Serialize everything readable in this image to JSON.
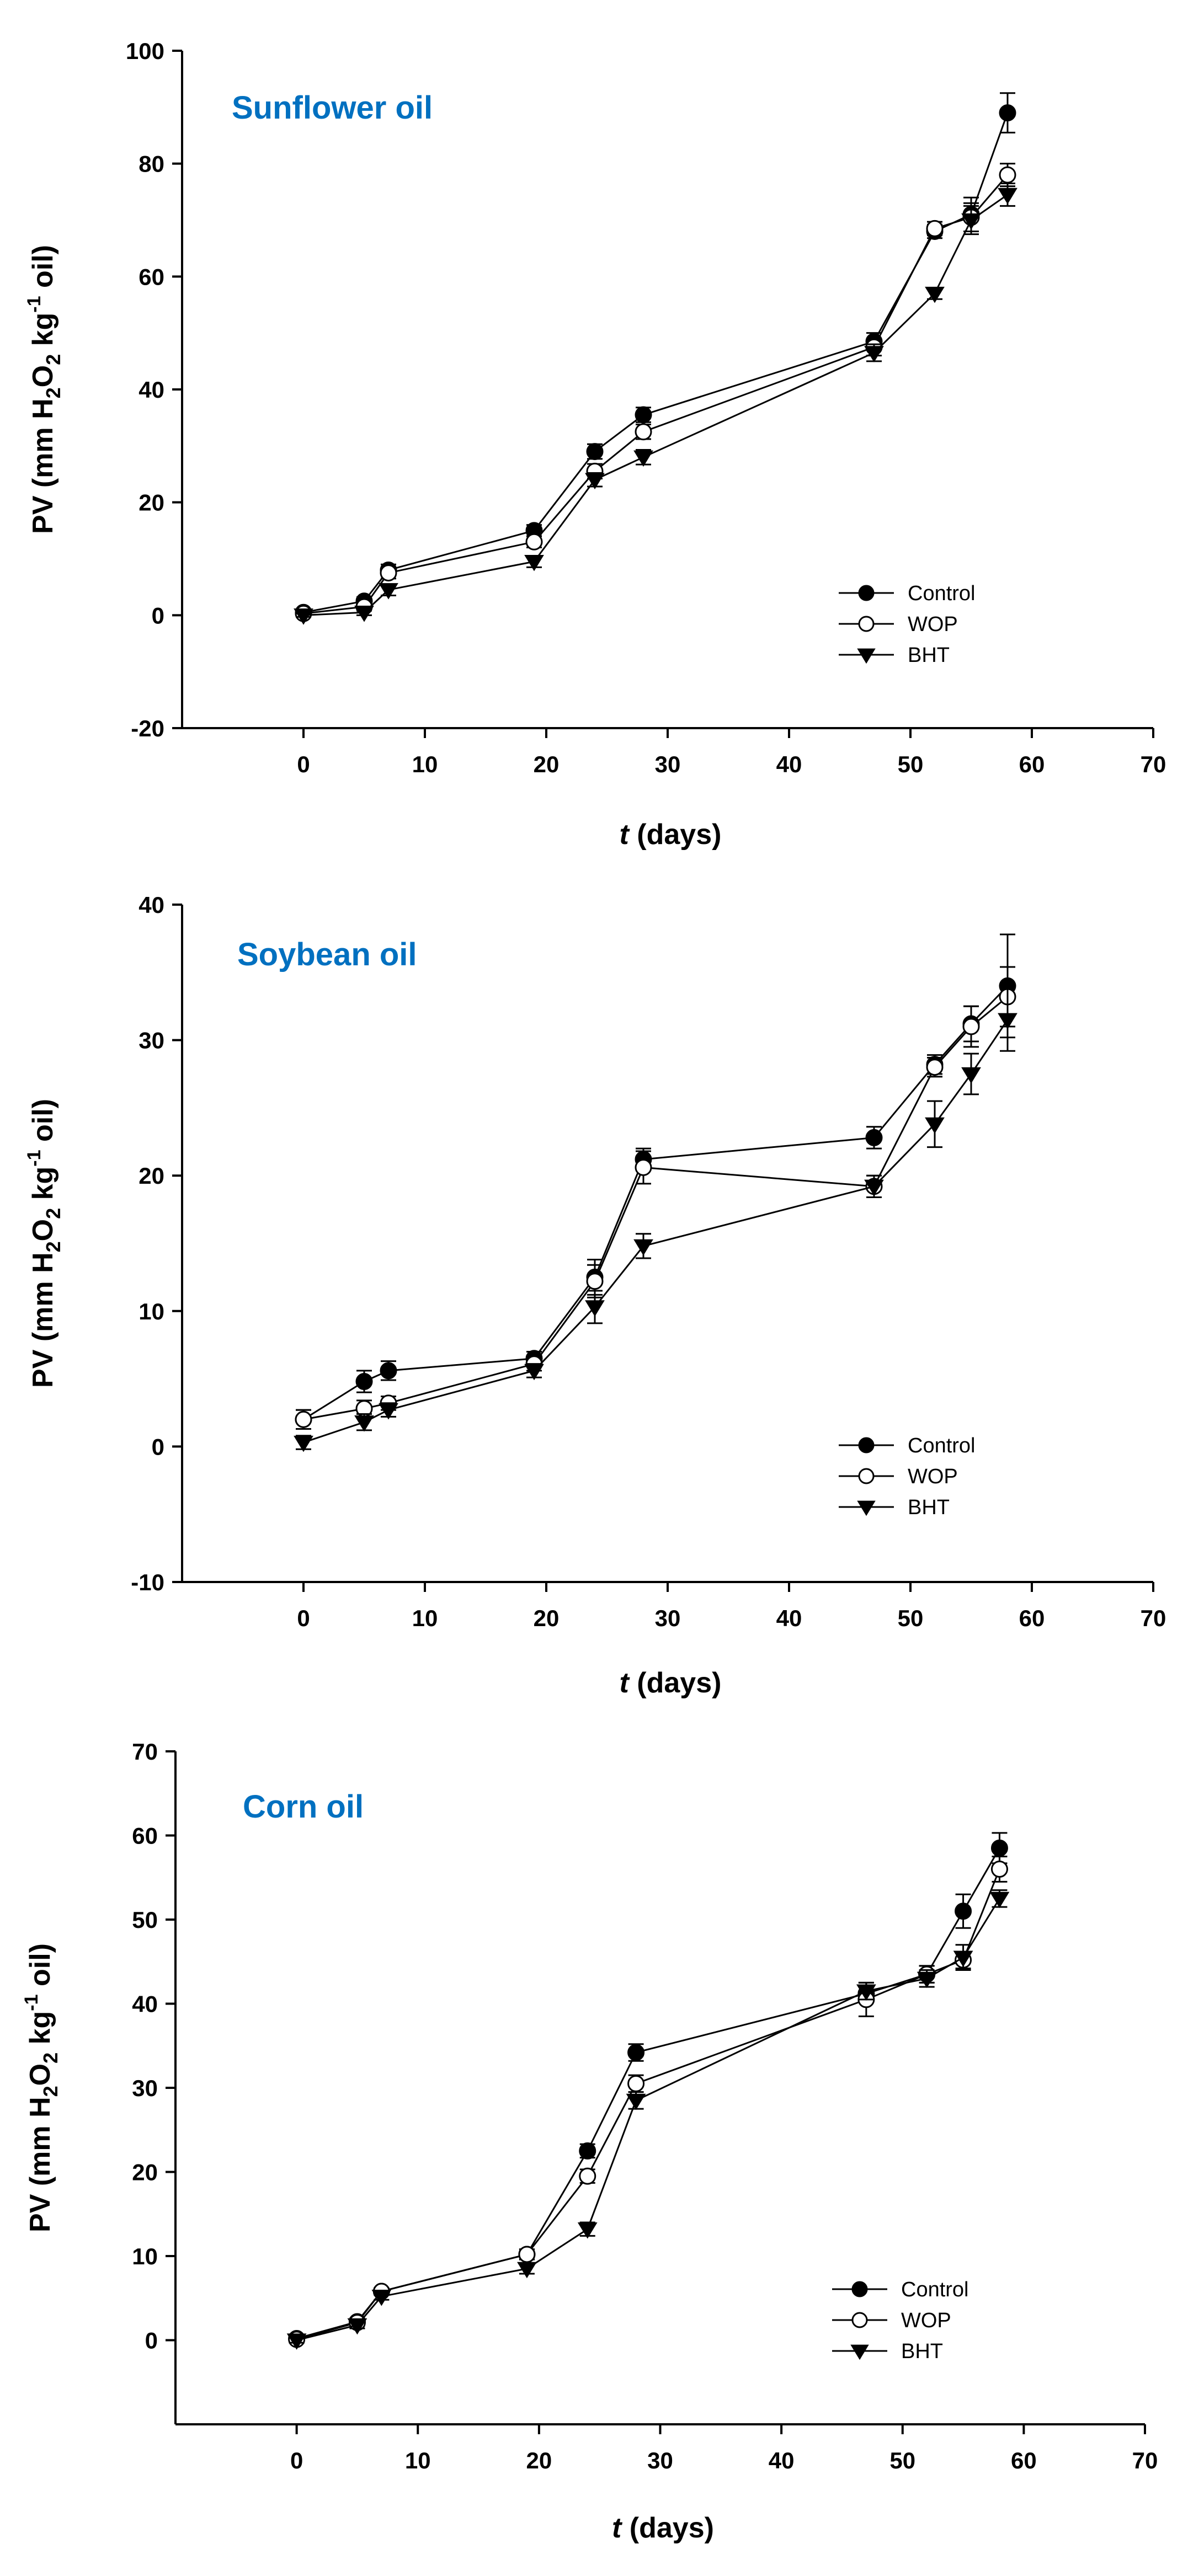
{
  "colors": {
    "title": "#0070c0",
    "ink": "#000000",
    "open": "#ffffff"
  },
  "chart_data": [
    {
      "type": "line",
      "title": "Sunflower oil",
      "xlabel_italic": "t",
      "xlabel_rest": "(days)",
      "ylabel": "PV (mm H2O2 kg-1 oil)",
      "xlim": [
        -10,
        70
      ],
      "ylim": [
        -20,
        100
      ],
      "xticks": [
        0,
        10,
        20,
        30,
        40,
        50,
        60,
        70
      ],
      "yticks": [
        -20,
        0,
        20,
        40,
        60,
        80,
        100
      ],
      "x": [
        0,
        5,
        7,
        19,
        24,
        28,
        47,
        52,
        55,
        58
      ],
      "series": [
        {
          "name": "Control",
          "marker": "filled-circle",
          "values": [
            0.5,
            2.5,
            8,
            15,
            29,
            35.5,
            48.5,
            68,
            71,
            89
          ],
          "errors": [
            0.5,
            0.7,
            1,
            1,
            1.3,
            1.3,
            1.5,
            1.2,
            3,
            3.5
          ]
        },
        {
          "name": "WOP",
          "marker": "open-circle",
          "values": [
            0.3,
            1.5,
            7.5,
            13,
            25.5,
            32.5,
            47.5,
            68.5,
            70.5,
            78
          ],
          "errors": [
            0.5,
            0.7,
            1,
            1,
            1.3,
            1.3,
            1.5,
            1.2,
            2.5,
            2
          ]
        },
        {
          "name": "BHT",
          "marker": "filled-triangle-down",
          "values": [
            0,
            0.5,
            4.5,
            9.5,
            24,
            28,
            46.5,
            57,
            70,
            74.5
          ],
          "errors": [
            0.3,
            0.5,
            1,
            1,
            1.2,
            1.3,
            1.5,
            1,
            2.5,
            2
          ]
        }
      ],
      "legend": "lower-right"
    },
    {
      "type": "line",
      "title": "Soybean oil",
      "xlabel_italic": "t",
      "xlabel_rest": "(days)",
      "ylabel": "PV (mm H2O2 kg-1 oil)",
      "xlim": [
        -10,
        70
      ],
      "ylim": [
        -10,
        40
      ],
      "xticks": [
        0,
        10,
        20,
        30,
        40,
        50,
        60,
        70
      ],
      "yticks": [
        -10,
        0,
        10,
        20,
        30,
        40
      ],
      "x": [
        0,
        5,
        7,
        19,
        24,
        28,
        47,
        52,
        55,
        58
      ],
      "series": [
        {
          "name": "Control",
          "marker": "filled-circle",
          "values": [
            2,
            4.8,
            5.6,
            6.5,
            12.5,
            21.2,
            22.8,
            28.2,
            31.2,
            34
          ],
          "errors": [
            0.7,
            0.8,
            0.7,
            0.5,
            1.3,
            0.8,
            0.8,
            0.7,
            1.3,
            3.8
          ]
        },
        {
          "name": "WOP",
          "marker": "open-circle",
          "values": [
            2,
            2.8,
            3.2,
            6.1,
            12.2,
            20.6,
            19.2,
            28,
            31,
            33.2
          ],
          "errors": [
            0.7,
            0.6,
            0.5,
            0.5,
            1.2,
            1.2,
            0.8,
            0.7,
            1.5,
            2.2
          ]
        },
        {
          "name": "BHT",
          "marker": "filled-triangle-down",
          "values": [
            0.3,
            1.8,
            2.7,
            5.6,
            10.3,
            14.8,
            19.2,
            23.8,
            27.5,
            31.5
          ],
          "errors": [
            0.5,
            0.6,
            0.5,
            0.5,
            1.2,
            0.9,
            0.8,
            1.7,
            1.5,
            2.3
          ]
        }
      ],
      "legend": "lower-right"
    },
    {
      "type": "line",
      "title": "Corn oil",
      "xlabel_italic": "t",
      "xlabel_rest": "(days)",
      "ylabel": "PV (mm H2O2 kg-1 oil)",
      "xlim": [
        -10,
        70
      ],
      "ylim": [
        -10,
        70
      ],
      "xticks": [
        0,
        10,
        20,
        30,
        40,
        50,
        60,
        70
      ],
      "yticks": [
        0,
        10,
        20,
        30,
        40,
        50,
        60,
        70
      ],
      "x": [
        0,
        5,
        7,
        19,
        24,
        28,
        47,
        52,
        55,
        58
      ],
      "series": [
        {
          "name": "Control",
          "marker": "filled-circle",
          "values": [
            0.2,
            2.2,
            5.8,
            10.2,
            22.5,
            34.2,
            41.2,
            43.5,
            51,
            58.5
          ],
          "errors": [
            0.3,
            0.4,
            0.4,
            0.6,
            0.8,
            1,
            1,
            1,
            2,
            1.8
          ]
        },
        {
          "name": "WOP",
          "marker": "open-circle",
          "values": [
            0.1,
            2.1,
            5.8,
            10.2,
            19.5,
            30.5,
            40.5,
            43.5,
            45.2,
            56
          ],
          "errors": [
            0.3,
            0.4,
            0.4,
            0.6,
            0.8,
            1,
            2,
            1,
            1,
            1.5
          ]
        },
        {
          "name": "BHT",
          "marker": "filled-triangle-down",
          "values": [
            0,
            1.8,
            5.2,
            8.5,
            13.2,
            28.5,
            41.5,
            43,
            45.5,
            52.5
          ],
          "errors": [
            0.3,
            0.4,
            0.4,
            0.6,
            0.8,
            1,
            1,
            1,
            1.5,
            1
          ]
        }
      ],
      "legend": "lower-right"
    }
  ]
}
